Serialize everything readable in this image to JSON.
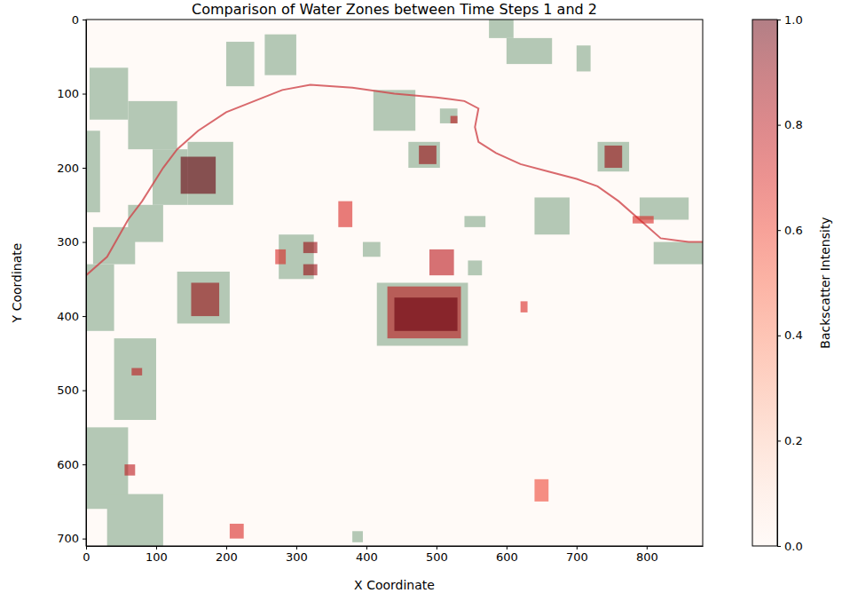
{
  "chart_data": {
    "type": "heatmap",
    "title": "Comparison of Water Zones between Time Steps 1 and 2",
    "x_label": "X Coordinate",
    "y_label": "Y Coordinate",
    "xlim": [
      0,
      880
    ],
    "ylim": [
      710,
      0
    ],
    "xticks": [
      0,
      100,
      200,
      300,
      400,
      500,
      600,
      700,
      800
    ],
    "yticks": [
      0,
      100,
      200,
      300,
      400,
      500,
      600,
      700
    ],
    "grid": false,
    "water_zones": {
      "color": "#b4c8b5",
      "rects": [
        [
          5,
          60,
          65,
          135
        ],
        [
          60,
          130,
          110,
          175
        ],
        [
          95,
          145,
          175,
          250
        ],
        [
          145,
          210,
          165,
          250
        ],
        [
          10,
          70,
          280,
          330
        ],
        [
          0,
          40,
          330,
          420
        ],
        [
          60,
          110,
          250,
          300
        ],
        [
          130,
          205,
          340,
          410
        ],
        [
          40,
          100,
          430,
          540
        ],
        [
          0,
          60,
          550,
          660
        ],
        [
          30,
          110,
          640,
          710
        ],
        [
          200,
          240,
          30,
          90
        ],
        [
          255,
          300,
          20,
          75
        ],
        [
          410,
          470,
          95,
          150
        ],
        [
          505,
          530,
          120,
          140
        ],
        [
          575,
          610,
          0,
          25
        ],
        [
          600,
          665,
          25,
          60
        ],
        [
          700,
          720,
          35,
          70
        ],
        [
          730,
          775,
          165,
          205
        ],
        [
          790,
          860,
          240,
          270
        ],
        [
          810,
          880,
          300,
          330
        ],
        [
          460,
          505,
          165,
          200
        ],
        [
          275,
          325,
          290,
          350
        ],
        [
          415,
          545,
          355,
          440
        ],
        [
          395,
          420,
          300,
          320
        ],
        [
          545,
          565,
          325,
          345
        ],
        [
          640,
          690,
          240,
          290
        ],
        [
          540,
          570,
          265,
          280
        ],
        [
          380,
          395,
          690,
          705
        ],
        [
          0,
          20,
          150,
          260
        ]
      ]
    },
    "change_zones": [
      {
        "x": [
          135,
          185
        ],
        "y": [
          185,
          235
        ],
        "value": 1.0
      },
      {
        "x": [
          150,
          190
        ],
        "y": [
          355,
          400
        ],
        "value": 0.9
      },
      {
        "x": [
          430,
          535
        ],
        "y": [
          360,
          430
        ],
        "value": 0.8
      },
      {
        "x": [
          440,
          530
        ],
        "y": [
          375,
          420
        ],
        "value": 1.0
      },
      {
        "x": [
          475,
          500
        ],
        "y": [
          170,
          195
        ],
        "value": 0.9
      },
      {
        "x": [
          740,
          765
        ],
        "y": [
          170,
          200
        ],
        "value": 0.9
      },
      {
        "x": [
          310,
          330
        ],
        "y": [
          300,
          315
        ],
        "value": 0.9
      },
      {
        "x": [
          310,
          330
        ],
        "y": [
          330,
          345
        ],
        "value": 0.9
      },
      {
        "x": [
          360,
          380
        ],
        "y": [
          245,
          280
        ],
        "value": 0.7
      },
      {
        "x": [
          490,
          525
        ],
        "y": [
          310,
          345
        ],
        "value": 0.8
      },
      {
        "x": [
          205,
          225
        ],
        "y": [
          680,
          700
        ],
        "value": 0.7
      },
      {
        "x": [
          270,
          285
        ],
        "y": [
          310,
          330
        ],
        "value": 0.7
      },
      {
        "x": [
          520,
          530
        ],
        "y": [
          130,
          140
        ],
        "value": 0.8
      },
      {
        "x": [
          620,
          630
        ],
        "y": [
          380,
          395
        ],
        "value": 0.7
      },
      {
        "x": [
          640,
          660
        ],
        "y": [
          620,
          650
        ],
        "value": 0.6
      },
      {
        "x": [
          65,
          80
        ],
        "y": [
          470,
          480
        ],
        "value": 0.8
      },
      {
        "x": [
          55,
          70
        ],
        "y": [
          600,
          615
        ],
        "value": 0.8
      },
      {
        "x": [
          780,
          810
        ],
        "y": [
          265,
          275
        ],
        "value": 0.7
      }
    ],
    "channel": {
      "color": "#d0454a",
      "x": [
        0,
        30,
        60,
        80,
        110,
        130,
        160,
        200,
        240,
        280,
        320,
        380,
        440,
        500,
        540,
        560,
        555,
        560,
        585,
        620,
        660,
        700,
        730,
        760,
        790,
        820,
        860,
        880
      ],
      "y": [
        345,
        320,
        270,
        245,
        200,
        175,
        150,
        125,
        110,
        95,
        88,
        92,
        100,
        105,
        110,
        120,
        145,
        165,
        180,
        195,
        205,
        215,
        225,
        245,
        270,
        295,
        300,
        300
      ]
    },
    "colorbar": {
      "label": "Backscatter Intensity",
      "lim": [
        0,
        1
      ],
      "ticks": [
        {
          "value": 0,
          "label": "0.0"
        },
        {
          "value": 0.2,
          "label": "0.2"
        },
        {
          "value": 0.4,
          "label": "0.4"
        },
        {
          "value": 0.6,
          "label": "0.6"
        },
        {
          "value": 0.8,
          "label": "0.8"
        },
        {
          "value": 1,
          "label": "1.0"
        }
      ]
    }
  }
}
